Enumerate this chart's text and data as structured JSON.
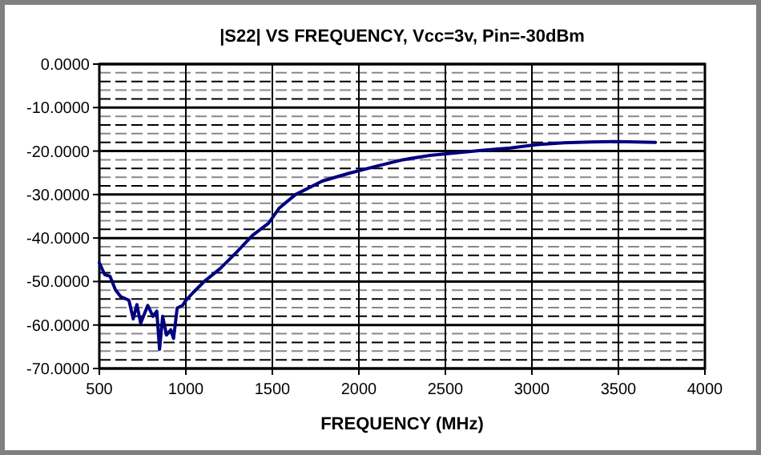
{
  "chart_data": {
    "type": "line",
    "title": "|S22| VS FREQUENCY, Vcc=3v, Pin=-30dBm",
    "xlabel": "FREQUENCY (MHz)",
    "x": [
      500,
      531,
      562,
      593,
      624,
      671,
      696,
      717,
      739,
      780,
      810,
      832,
      848,
      866,
      888,
      913,
      929,
      950,
      981,
      997,
      1043,
      1106,
      1199,
      1292,
      1385,
      1478,
      1540,
      1634,
      1789,
      1944,
      2099,
      2255,
      2410,
      2565,
      2720,
      2876,
      3031,
      3186,
      3342,
      3497,
      3714
    ],
    "series": [
      {
        "color": "#000080",
        "values": [
          -45.7,
          -48.4,
          -48.8,
          -51.9,
          -53.5,
          -54.3,
          -58.6,
          -55.3,
          -59.6,
          -55.5,
          -58.0,
          -56.8,
          -65.6,
          -58.0,
          -62.3,
          -61.1,
          -63.1,
          -56.1,
          -55.5,
          -54.5,
          -52.5,
          -50.0,
          -47.0,
          -43.3,
          -39.4,
          -36.6,
          -33.1,
          -30.0,
          -26.9,
          -25.1,
          -23.5,
          -22.0,
          -21.0,
          -20.4,
          -19.8,
          -19.3,
          -18.5,
          -18.1,
          -17.9,
          -17.8,
          -18.0
        ]
      }
    ],
    "xlim": [
      500,
      4000
    ],
    "xticks": [
      500,
      1000,
      1500,
      2000,
      2500,
      3000,
      3500,
      4000
    ],
    "ylim": [
      -70,
      0
    ],
    "yticks": [
      {
        "value": -70,
        "label": "-70.0000"
      },
      {
        "value": -60,
        "label": "-60.0000"
      },
      {
        "value": -50,
        "label": "-50.0000"
      },
      {
        "value": -40,
        "label": "-40.0000"
      },
      {
        "value": -30,
        "label": "-30.0000"
      },
      {
        "value": -20,
        "label": "-20.0000"
      },
      {
        "value": -10,
        "label": "-10.0000"
      },
      {
        "value": 0,
        "label": "0.0000"
      }
    ],
    "grid": true,
    "marker": "none",
    "line_style": "solid"
  }
}
